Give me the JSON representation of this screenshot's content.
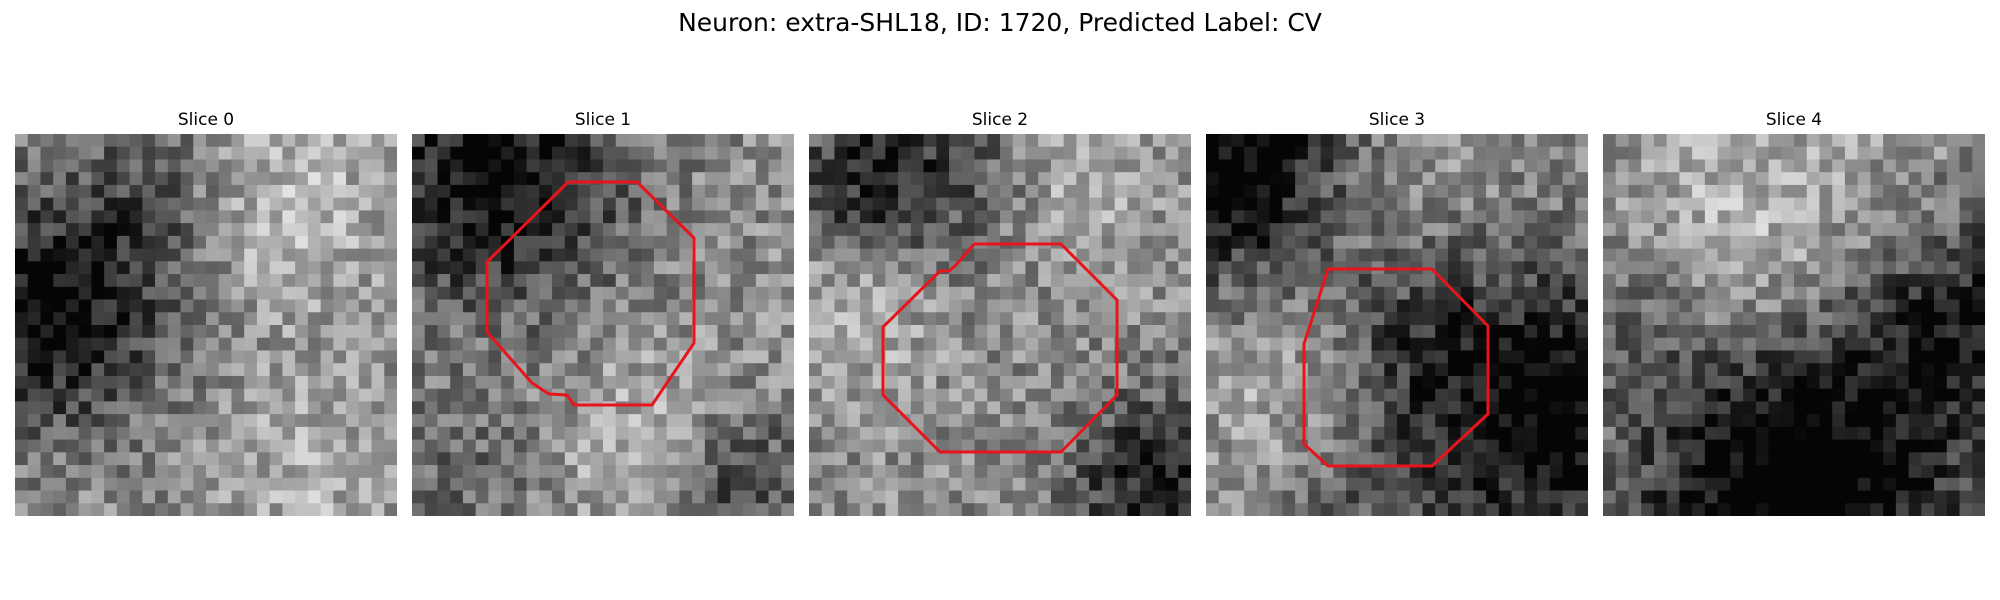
{
  "figure": {
    "suptitle": "Neuron: extra-SHL18, ID: 1720, Predicted Label: CV"
  },
  "panels": [
    {
      "title": "Slice 0",
      "has_contour": false
    },
    {
      "title": "Slice 1",
      "has_contour": true
    },
    {
      "title": "Slice 2",
      "has_contour": true
    },
    {
      "title": "Slice 3",
      "has_contour": true
    },
    {
      "title": "Slice 4",
      "has_contour": false
    }
  ],
  "colors": {
    "contour": "#e8141c",
    "background": "#ffffff"
  },
  "icons": {
    "contour": "red-octagon-contour"
  }
}
